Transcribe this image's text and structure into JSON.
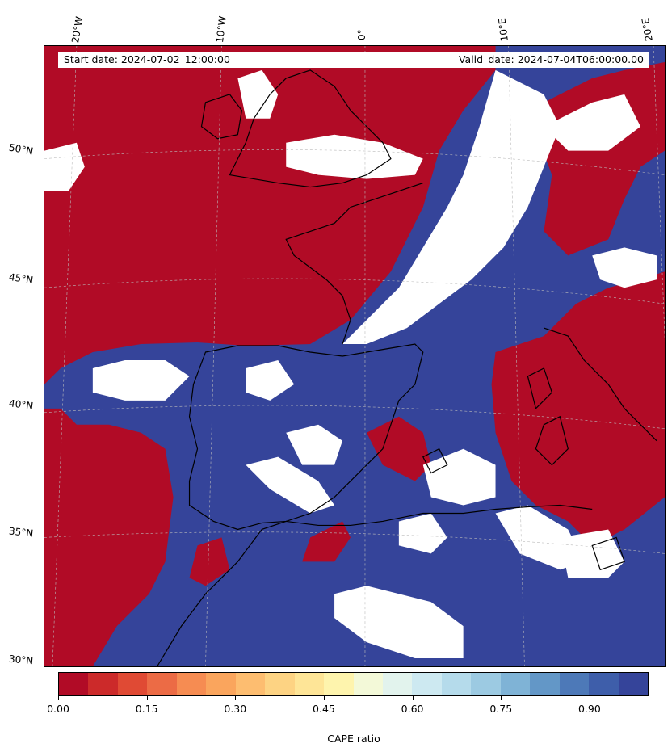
{
  "header": {
    "start_date": "Start date: 2024-07-02_12:00:00",
    "valid_date": "Valid_date: 2024-07-04T06:00:00.00"
  },
  "map": {
    "lon_labels": [
      "20°W",
      "10°W",
      "0°",
      "10°E",
      "20°E"
    ],
    "lat_labels": [
      "50°N",
      "45°N",
      "40°N",
      "35°N",
      "30°N"
    ],
    "colors": {
      "low": "#b10b26",
      "high": "#35449a",
      "missing": "#ffffff",
      "coast": "#000000"
    }
  },
  "colorbar": {
    "label": "CAPE ratio",
    "ticks": [
      "0.00",
      "0.15",
      "0.30",
      "0.45",
      "0.60",
      "0.75",
      "0.90"
    ],
    "tick_values": [
      0.0,
      0.15,
      0.3,
      0.45,
      0.6,
      0.75,
      0.9
    ],
    "range": [
      0,
      1
    ],
    "colors": [
      "#b10b26",
      "#cc2a2a",
      "#e04a34",
      "#ec6b45",
      "#f68c52",
      "#faa55d",
      "#fdbd70",
      "#fdd383",
      "#fee597",
      "#fef4ad",
      "#f3f9d8",
      "#e2f3ed",
      "#cde9f1",
      "#b5dbeb",
      "#9ccae2",
      "#7fb3d6",
      "#6397c7",
      "#4d79b8",
      "#3e5eaa",
      "#35449a"
    ]
  }
}
